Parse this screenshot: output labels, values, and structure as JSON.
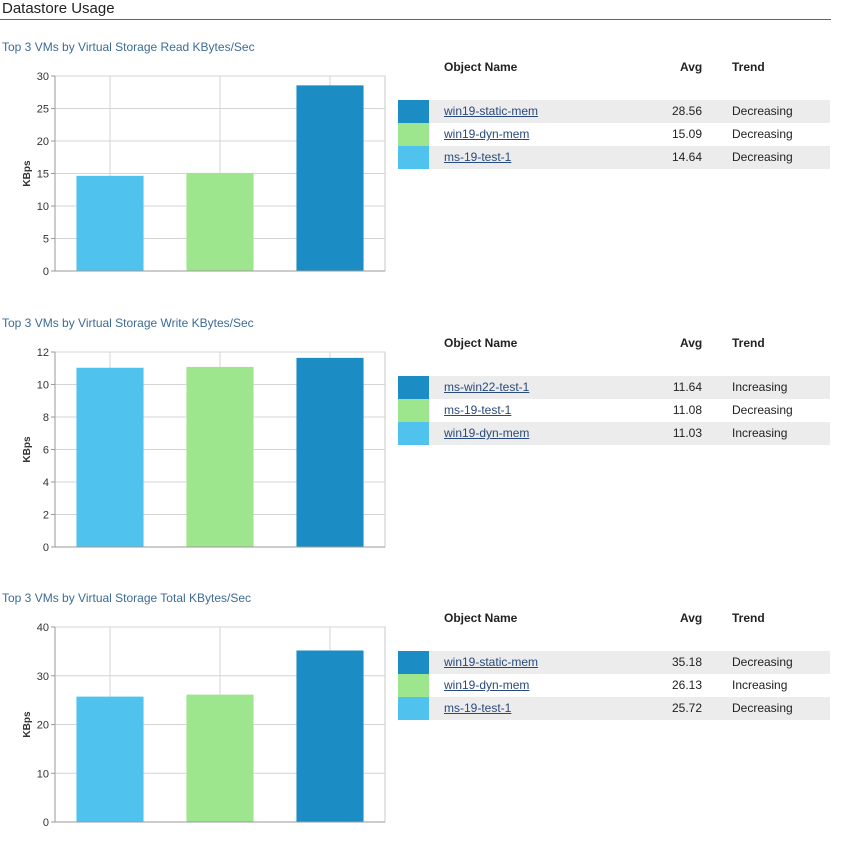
{
  "page_title": "Datastore Usage",
  "colors": {
    "dark_blue": "#1b8dc4",
    "light_green": "#9de68e",
    "light_blue": "#4fc2ee"
  },
  "sections": [
    {
      "title": "Top 3 VMs by Virtual Storage Read KBytes/Sec",
      "legend_header": {
        "name": "Object Name",
        "avg": "Avg",
        "trend": "Trend"
      },
      "rows": [
        {
          "name": "win19-static-mem",
          "avg": "28.56",
          "trend": "Decreasing",
          "color": "#1b8dc4"
        },
        {
          "name": "win19-dyn-mem",
          "avg": "15.09",
          "trend": "Decreasing",
          "color": "#9de68e"
        },
        {
          "name": "ms-19-test-1",
          "avg": "14.64",
          "trend": "Decreasing",
          "color": "#4fc2ee"
        }
      ]
    },
    {
      "title": "Top 3 VMs by Virtual Storage Write KBytes/Sec",
      "legend_header": {
        "name": "Object Name",
        "avg": "Avg",
        "trend": "Trend"
      },
      "rows": [
        {
          "name": "ms-win22-test-1",
          "avg": "11.64",
          "trend": "Increasing",
          "color": "#1b8dc4"
        },
        {
          "name": "ms-19-test-1",
          "avg": "11.08",
          "trend": "Decreasing",
          "color": "#9de68e"
        },
        {
          "name": "win19-dyn-mem",
          "avg": "11.03",
          "trend": "Increasing",
          "color": "#4fc2ee"
        }
      ]
    },
    {
      "title": "Top 3 VMs by Virtual Storage Total KBytes/Sec",
      "legend_header": {
        "name": "Object Name",
        "avg": "Avg",
        "trend": "Trend"
      },
      "rows": [
        {
          "name": "win19-static-mem",
          "avg": "35.18",
          "trend": "Decreasing",
          "color": "#1b8dc4"
        },
        {
          "name": "win19-dyn-mem",
          "avg": "26.13",
          "trend": "Increasing",
          "color": "#9de68e"
        },
        {
          "name": "ms-19-test-1",
          "avg": "25.72",
          "trend": "Decreasing",
          "color": "#4fc2ee"
        }
      ]
    }
  ],
  "chart_data": [
    {
      "type": "bar",
      "title": "Top 3 VMs by Virtual Storage Read KBytes/Sec",
      "ylabel": "KBps",
      "ylim": [
        0,
        30
      ],
      "yticks": [
        0,
        5,
        10,
        15,
        20,
        25,
        30
      ],
      "grid": true,
      "bars": [
        {
          "category": "ms-19-test-1",
          "value": 14.64,
          "color": "#4fc2ee"
        },
        {
          "category": "win19-dyn-mem",
          "value": 15.09,
          "color": "#9de68e"
        },
        {
          "category": "win19-static-mem",
          "value": 28.56,
          "color": "#1b8dc4"
        }
      ]
    },
    {
      "type": "bar",
      "title": "Top 3 VMs by Virtual Storage Write KBytes/Sec",
      "ylabel": "KBps",
      "ylim": [
        0,
        12
      ],
      "yticks": [
        0,
        2,
        4,
        6,
        8,
        10,
        12
      ],
      "grid": true,
      "bars": [
        {
          "category": "win19-dyn-mem",
          "value": 11.03,
          "color": "#4fc2ee"
        },
        {
          "category": "ms-19-test-1",
          "value": 11.08,
          "color": "#9de68e"
        },
        {
          "category": "ms-win22-test-1",
          "value": 11.64,
          "color": "#1b8dc4"
        }
      ]
    },
    {
      "type": "bar",
      "title": "Top 3 VMs by Virtual Storage Total KBytes/Sec",
      "ylabel": "KBps",
      "ylim": [
        0,
        40
      ],
      "yticks": [
        0,
        10,
        20,
        30,
        40
      ],
      "grid": true,
      "bars": [
        {
          "category": "ms-19-test-1",
          "value": 25.72,
          "color": "#4fc2ee"
        },
        {
          "category": "win19-dyn-mem",
          "value": 26.13,
          "color": "#9de68e"
        },
        {
          "category": "win19-static-mem",
          "value": 35.18,
          "color": "#1b8dc4"
        }
      ]
    }
  ]
}
